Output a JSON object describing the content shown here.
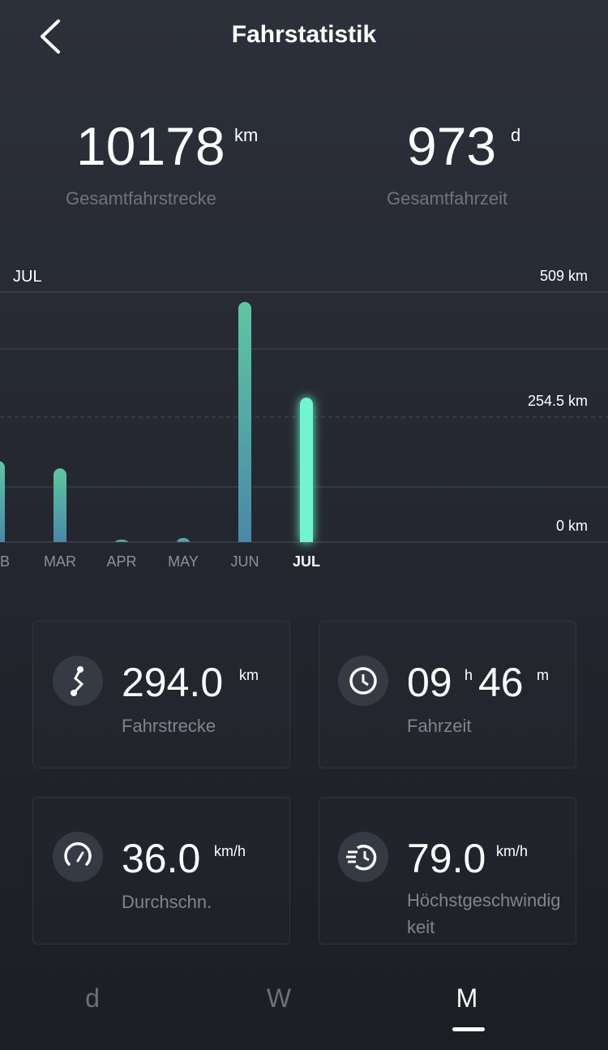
{
  "header": {
    "title": "Fahrstatistik"
  },
  "summary": [
    {
      "value": "10178",
      "unit": "km",
      "label": "Gesamtfahrstrecke"
    },
    {
      "value": "973",
      "unit": "d",
      "label": "Gesamtfahrzeit"
    }
  ],
  "chart_data": {
    "type": "bar",
    "selected_label": "JUL",
    "categories": [
      "B",
      "MAR",
      "APR",
      "MAY",
      "JUN",
      "JUL"
    ],
    "values": [
      165,
      150,
      5,
      8,
      489,
      294
    ],
    "color": "#5cc3a0",
    "highlight_color": "#72f5cf",
    "ylim": [
      0,
      509
    ],
    "yticks": [
      {
        "value": 0,
        "label": "0 km"
      },
      {
        "value": 254.5,
        "label": "254.5 km"
      },
      {
        "value": 509,
        "label": "509 km"
      }
    ]
  },
  "cards": [
    {
      "value": "294.0",
      "unit": "km",
      "label": "Fahrstrecke"
    },
    {
      "hours": "09",
      "hours_unit": "h",
      "minutes": "46",
      "minutes_unit": "m",
      "label": "Fahrzeit"
    },
    {
      "value": "36.0",
      "unit": "km/h",
      "label": "Durchschn."
    },
    {
      "value": "79.0",
      "unit": "km/h",
      "label": "Höchstgeschwindigkeit"
    }
  ],
  "tabs": [
    "d",
    "W",
    "M"
  ]
}
